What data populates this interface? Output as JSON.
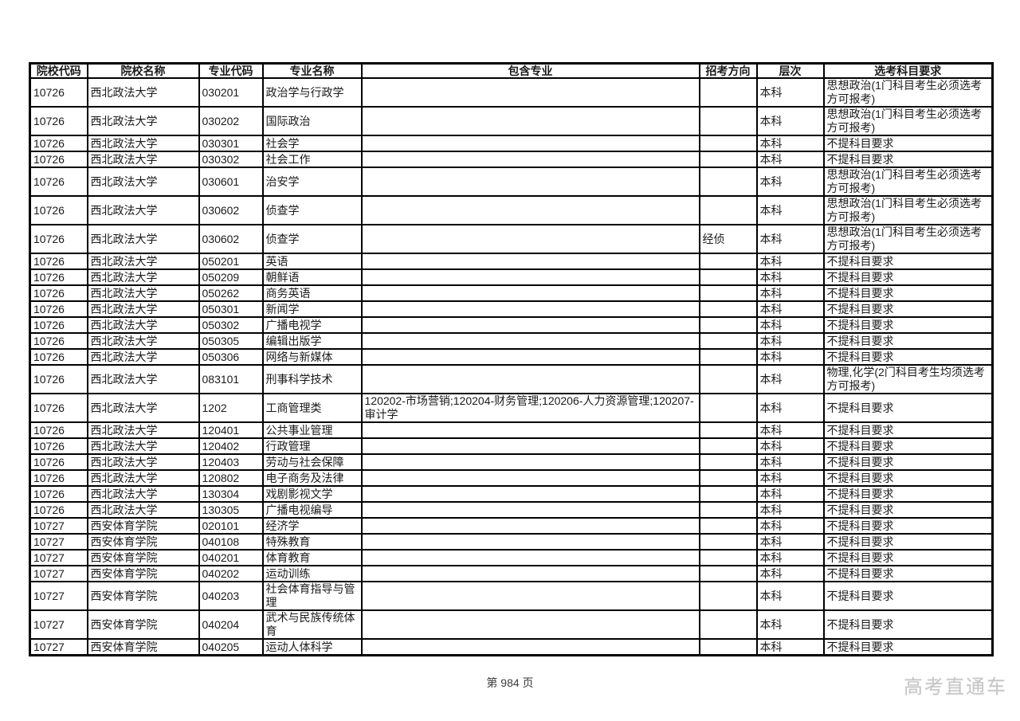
{
  "page": {
    "footer_page_label": "第 984 页",
    "watermark": "高考直通车",
    "colors": {
      "background": "#ffffff",
      "table_border": "#000000",
      "text": "#1a1a1a",
      "watermark_text": "#c6c6c6"
    }
  },
  "table": {
    "headers": [
      "院校代码",
      "院校名称",
      "专业代码",
      "专业名称",
      "包含专业",
      "招考方向",
      "层次",
      "选考科目要求"
    ],
    "column_keys": [
      "institution-code",
      "institution-name",
      "major-code",
      "major-name",
      "included-majors",
      "recruit-direction",
      "level",
      "subject-requirement"
    ],
    "rows": [
      [
        "10726",
        "西北政法大学",
        "030201",
        "政治学与行政学",
        "",
        "",
        "本科",
        "思想政治(1门科目考生必须选考方可报考)"
      ],
      [
        "10726",
        "西北政法大学",
        "030202",
        "国际政治",
        "",
        "",
        "本科",
        "思想政治(1门科目考生必须选考方可报考)"
      ],
      [
        "10726",
        "西北政法大学",
        "030301",
        "社会学",
        "",
        "",
        "本科",
        "不提科目要求"
      ],
      [
        "10726",
        "西北政法大学",
        "030302",
        "社会工作",
        "",
        "",
        "本科",
        "不提科目要求"
      ],
      [
        "10726",
        "西北政法大学",
        "030601",
        "治安学",
        "",
        "",
        "本科",
        "思想政治(1门科目考生必须选考方可报考)"
      ],
      [
        "10726",
        "西北政法大学",
        "030602",
        "侦查学",
        "",
        "",
        "本科",
        "思想政治(1门科目考生必须选考方可报考)"
      ],
      [
        "10726",
        "西北政法大学",
        "030602",
        "侦查学",
        "",
        "经侦",
        "本科",
        "思想政治(1门科目考生必须选考方可报考)"
      ],
      [
        "10726",
        "西北政法大学",
        "050201",
        "英语",
        "",
        "",
        "本科",
        "不提科目要求"
      ],
      [
        "10726",
        "西北政法大学",
        "050209",
        "朝鲜语",
        "",
        "",
        "本科",
        "不提科目要求"
      ],
      [
        "10726",
        "西北政法大学",
        "050262",
        "商务英语",
        "",
        "",
        "本科",
        "不提科目要求"
      ],
      [
        "10726",
        "西北政法大学",
        "050301",
        "新闻学",
        "",
        "",
        "本科",
        "不提科目要求"
      ],
      [
        "10726",
        "西北政法大学",
        "050302",
        "广播电视学",
        "",
        "",
        "本科",
        "不提科目要求"
      ],
      [
        "10726",
        "西北政法大学",
        "050305",
        "编辑出版学",
        "",
        "",
        "本科",
        "不提科目要求"
      ],
      [
        "10726",
        "西北政法大学",
        "050306",
        "网络与新媒体",
        "",
        "",
        "本科",
        "不提科目要求"
      ],
      [
        "10726",
        "西北政法大学",
        "083101",
        "刑事科学技术",
        "",
        "",
        "本科",
        "物理,化学(2门科目考生均须选考方可报考)"
      ],
      [
        "10726",
        "西北政法大学",
        "1202",
        "工商管理类",
        "120202-市场营销;120204-财务管理;120206-人力资源管理;120207-审计学",
        "",
        "本科",
        "不提科目要求"
      ],
      [
        "10726",
        "西北政法大学",
        "120401",
        "公共事业管理",
        "",
        "",
        "本科",
        "不提科目要求"
      ],
      [
        "10726",
        "西北政法大学",
        "120402",
        "行政管理",
        "",
        "",
        "本科",
        "不提科目要求"
      ],
      [
        "10726",
        "西北政法大学",
        "120403",
        "劳动与社会保障",
        "",
        "",
        "本科",
        "不提科目要求"
      ],
      [
        "10726",
        "西北政法大学",
        "120802",
        "电子商务及法律",
        "",
        "",
        "本科",
        "不提科目要求"
      ],
      [
        "10726",
        "西北政法大学",
        "130304",
        "戏剧影视文学",
        "",
        "",
        "本科",
        "不提科目要求"
      ],
      [
        "10726",
        "西北政法大学",
        "130305",
        "广播电视编导",
        "",
        "",
        "本科",
        "不提科目要求"
      ],
      [
        "10727",
        "西安体育学院",
        "020101",
        "经济学",
        "",
        "",
        "本科",
        "不提科目要求"
      ],
      [
        "10727",
        "西安体育学院",
        "040108",
        "特殊教育",
        "",
        "",
        "本科",
        "不提科目要求"
      ],
      [
        "10727",
        "西安体育学院",
        "040201",
        "体育教育",
        "",
        "",
        "本科",
        "不提科目要求"
      ],
      [
        "10727",
        "西安体育学院",
        "040202",
        "运动训练",
        "",
        "",
        "本科",
        "不提科目要求"
      ],
      [
        "10727",
        "西安体育学院",
        "040203",
        "社会体育指导与管理",
        "",
        "",
        "本科",
        "不提科目要求"
      ],
      [
        "10727",
        "西安体育学院",
        "040204",
        "武术与民族传统体育",
        "",
        "",
        "本科",
        "不提科目要求"
      ],
      [
        "10727",
        "西安体育学院",
        "040205",
        "运动人体科学",
        "",
        "",
        "本科",
        "不提科目要求"
      ]
    ]
  }
}
